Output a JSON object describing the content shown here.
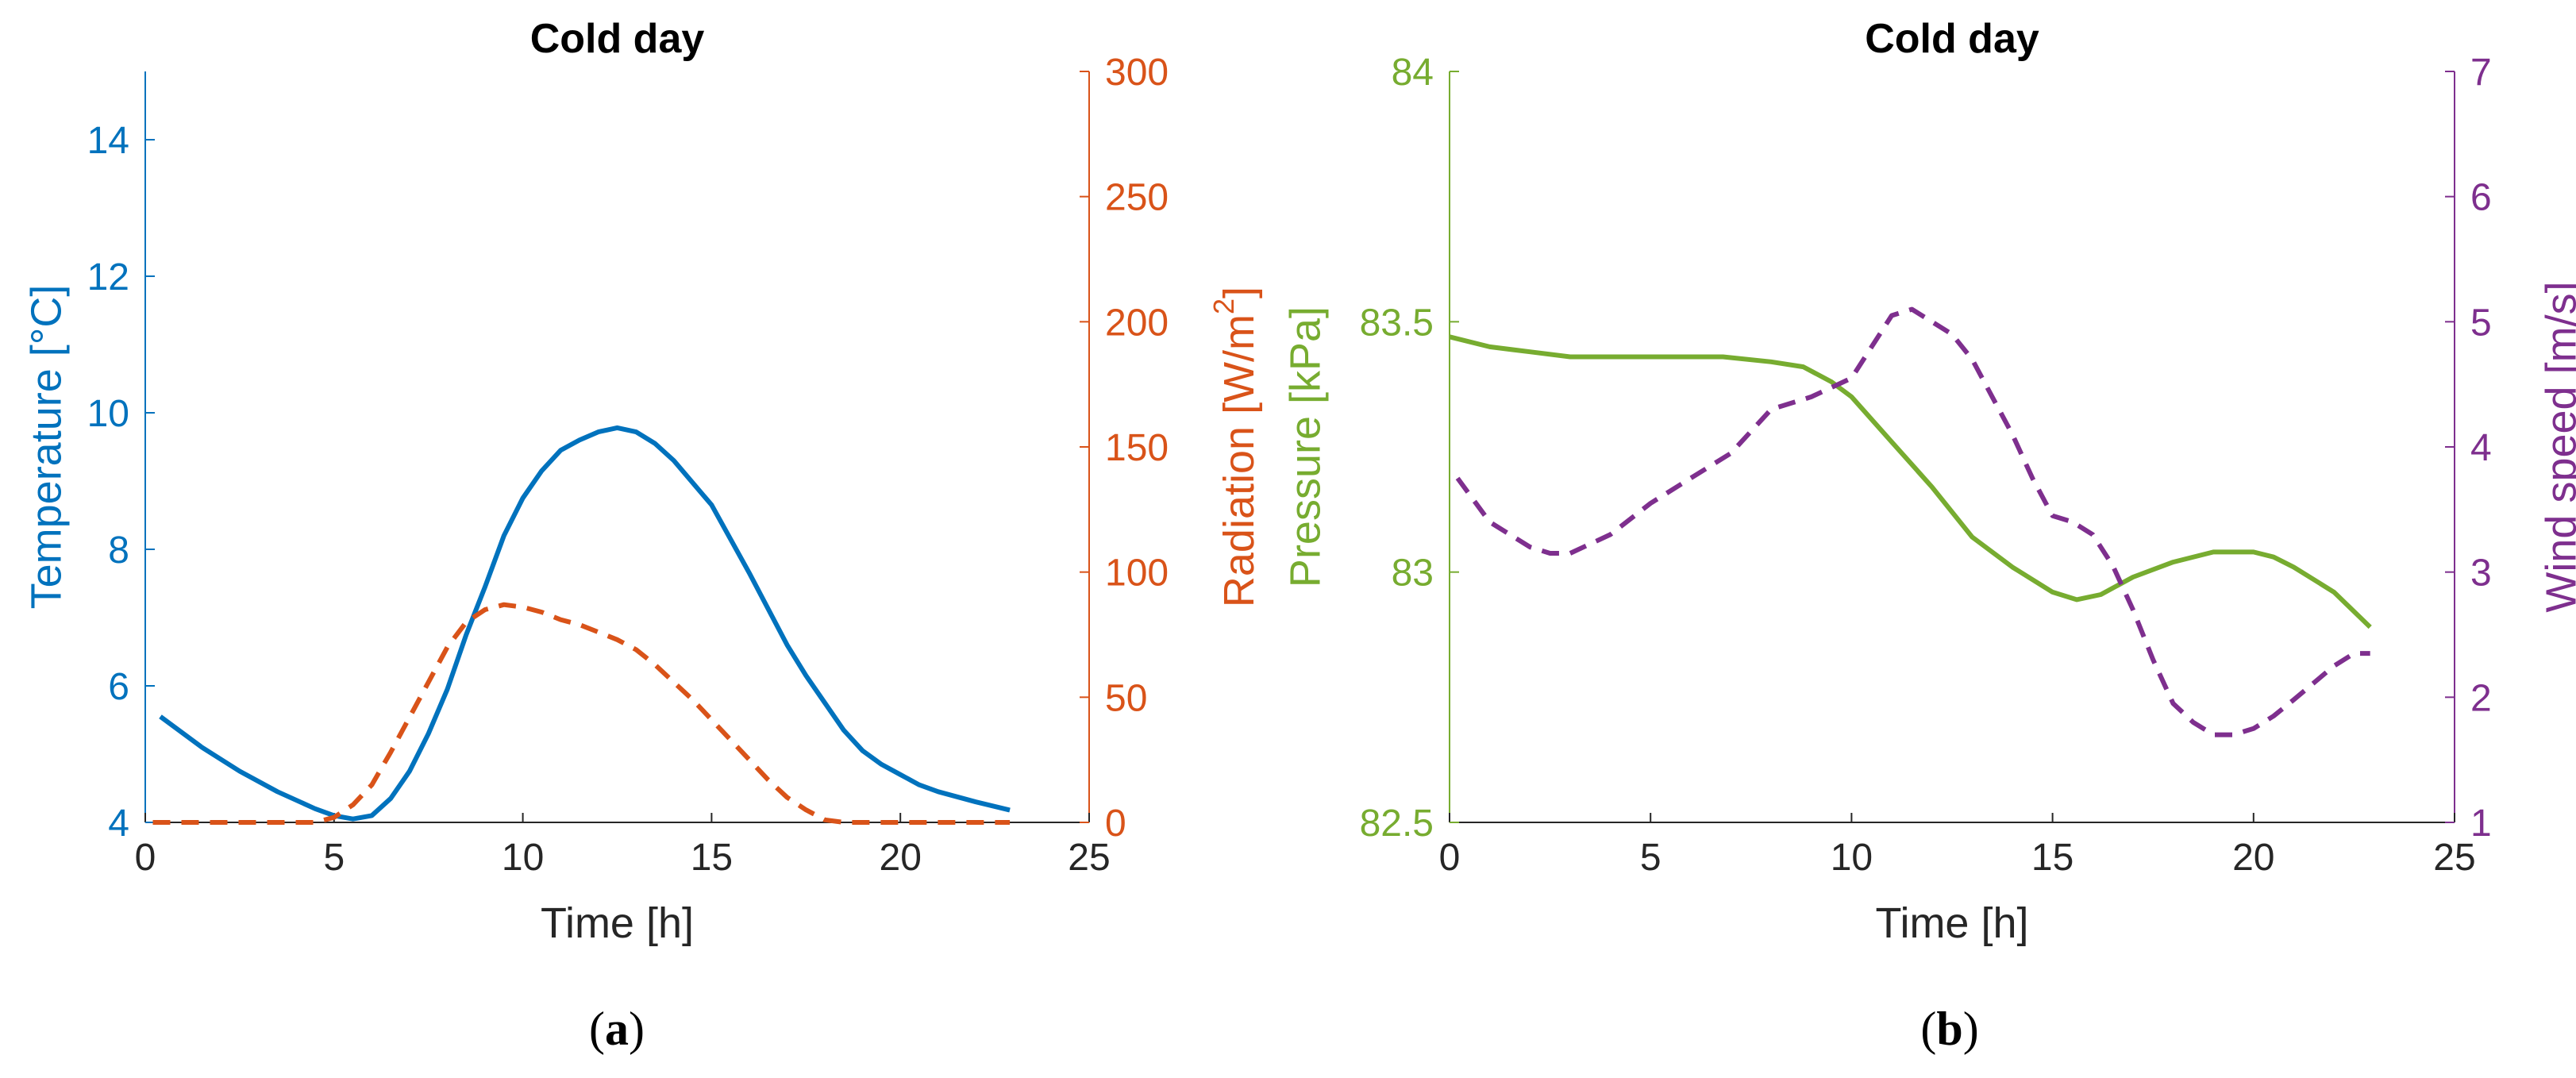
{
  "colors": {
    "temperature": "#0072BD",
    "radiation": "#D95319",
    "pressure": "#77AC30",
    "wind": "#7E2F8E",
    "axis": "#262626"
  },
  "panels": [
    {
      "paren_open": "(",
      "letter": "a",
      "paren_close": ")"
    },
    {
      "paren_open": "(",
      "letter": "b",
      "paren_close": ")"
    }
  ],
  "chart_data": [
    {
      "type": "line",
      "title": "Cold day",
      "xlabel": "Time [h]",
      "xlim": [
        0,
        25
      ],
      "xticks": [
        "0",
        "5",
        "10",
        "15",
        "20",
        "25"
      ],
      "yleft": {
        "label": "Temperature [°C]",
        "ylim": [
          4,
          15
        ],
        "ticks": [
          "4",
          "6",
          "8",
          "10",
          "12",
          "14"
        ]
      },
      "yright": {
        "label_main": "Radiation [W/m",
        "label_sup": "2",
        "label_end": "]",
        "ylim": [
          0,
          300
        ],
        "ticks": [
          "0",
          "50",
          "100",
          "150",
          "200",
          "250",
          "300"
        ]
      },
      "grid": false,
      "series": [
        {
          "axis": "left",
          "style": "solid",
          "color": "temperature",
          "x": [
            0.4,
            1.5,
            2.5,
            3.5,
            4.5,
            5.0,
            5.5,
            6.0,
            6.5,
            7.0,
            7.5,
            8.0,
            8.5,
            9.0,
            9.5,
            10.0,
            10.5,
            11.0,
            11.5,
            12.0,
            12.5,
            13.0,
            13.5,
            14.0,
            15.0,
            16.0,
            17.0,
            17.5,
            18.0,
            18.5,
            19.0,
            19.5,
            20.0,
            20.5,
            21.0,
            22.0,
            22.9
          ],
          "y": [
            5.55,
            5.1,
            4.75,
            4.45,
            4.2,
            4.1,
            4.05,
            4.1,
            4.35,
            4.75,
            5.3,
            5.95,
            6.75,
            7.45,
            8.2,
            8.75,
            9.15,
            9.45,
            9.6,
            9.72,
            9.78,
            9.72,
            9.55,
            9.3,
            8.65,
            7.65,
            6.6,
            6.15,
            5.75,
            5.35,
            5.05,
            4.85,
            4.7,
            4.55,
            4.45,
            4.3,
            4.18
          ]
        },
        {
          "axis": "right",
          "style": "dashed",
          "color": "radiation",
          "x": [
            0.2,
            2.0,
            4.5,
            5.0,
            5.5,
            6.0,
            6.5,
            7.0,
            7.5,
            8.0,
            8.5,
            9.0,
            9.5,
            10.0,
            10.5,
            11.0,
            11.5,
            12.0,
            12.5,
            13.0,
            13.5,
            14.0,
            14.5,
            15.0,
            15.5,
            16.0,
            16.5,
            17.0,
            17.5,
            18.0,
            18.5,
            19.0,
            20.0,
            21.0,
            22.9
          ],
          "y": [
            0,
            0,
            0,
            2,
            7,
            15,
            28,
            42,
            56,
            70,
            80,
            85,
            87,
            86,
            84,
            81,
            79,
            76,
            73,
            69,
            63,
            56,
            49,
            41,
            33,
            25,
            17,
            10,
            5,
            1,
            0,
            0,
            0,
            0,
            0
          ]
        }
      ]
    },
    {
      "type": "line",
      "title": "Cold day",
      "xlabel": "Time [h]",
      "xlim": [
        0,
        25
      ],
      "xticks": [
        "0",
        "5",
        "10",
        "15",
        "20",
        "25"
      ],
      "yleft": {
        "label": "Pressure [kPa]",
        "ylim": [
          82.5,
          84
        ],
        "ticks": [
          "82.5",
          "83",
          "83.5",
          "84"
        ]
      },
      "yright": {
        "label": "Wind speed [m/s]",
        "ylim": [
          1,
          7
        ],
        "ticks": [
          "1",
          "2",
          "3",
          "4",
          "5",
          "6",
          "7"
        ]
      },
      "grid": false,
      "series": [
        {
          "axis": "left",
          "style": "solid",
          "color": "pressure",
          "x": [
            0.0,
            1.0,
            2.0,
            3.0,
            4.0,
            5.0,
            6.0,
            6.8,
            8.0,
            8.8,
            9.5,
            10.0,
            11.0,
            12.0,
            13.0,
            14.0,
            15.0,
            15.6,
            16.2,
            17.0,
            18.0,
            19.0,
            19.5,
            20.0,
            20.5,
            21.0,
            22.0,
            22.9
          ],
          "y": [
            83.47,
            83.45,
            83.44,
            83.43,
            83.43,
            83.43,
            83.43,
            83.43,
            83.42,
            83.41,
            83.38,
            83.35,
            83.26,
            83.17,
            83.07,
            83.01,
            82.96,
            82.945,
            82.955,
            82.99,
            83.02,
            83.04,
            83.04,
            83.04,
            83.03,
            83.01,
            82.96,
            82.89
          ]
        },
        {
          "axis": "right",
          "style": "dashed",
          "color": "wind",
          "x": [
            0.2,
            1.0,
            2.0,
            2.5,
            3.0,
            4.0,
            5.0,
            6.0,
            7.0,
            8.0,
            9.0,
            10.0,
            10.5,
            11.0,
            11.5,
            12.0,
            12.5,
            13.0,
            13.5,
            14.0,
            14.5,
            15.0,
            15.5,
            16.0,
            16.5,
            17.0,
            17.5,
            18.0,
            18.5,
            19.0,
            19.5,
            20.0,
            20.5,
            21.0,
            22.0,
            22.5,
            22.9
          ],
          "y": [
            3.75,
            3.4,
            3.2,
            3.15,
            3.15,
            3.3,
            3.55,
            3.75,
            3.95,
            4.3,
            4.4,
            4.55,
            4.8,
            5.05,
            5.1,
            5.0,
            4.9,
            4.7,
            4.4,
            4.1,
            3.75,
            3.45,
            3.4,
            3.3,
            3.05,
            2.7,
            2.3,
            1.95,
            1.8,
            1.7,
            1.7,
            1.75,
            1.85,
            1.98,
            2.25,
            2.35,
            2.35
          ]
        }
      ]
    }
  ]
}
